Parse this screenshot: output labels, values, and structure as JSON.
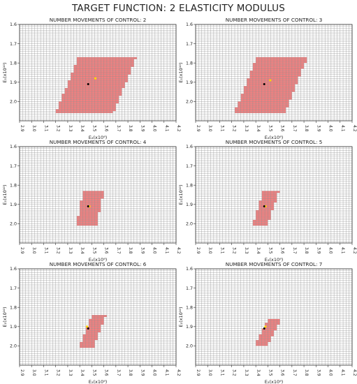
{
  "figure_title": "TARGET FUNCTION: 2 ELASTICITY MODULUS",
  "axes_labels": {
    "xlabel": "E₂(x10⁹)",
    "ylabel": "E₁(x10¹⁰)"
  },
  "colors": {
    "region": "#f08080",
    "grid": "#8c8c8c",
    "true_point": "#000000",
    "estimate_point": "#ffd700"
  },
  "chart_data": [
    {
      "type": "heatmap",
      "title": "NUMBER MOVEMENTS OF CONTROL: 2",
      "xlim": [
        2.9,
        4.2
      ],
      "ylim": [
        2.1,
        1.6
      ],
      "y_inverted": true,
      "xticks": [
        "2.9",
        "3.0",
        "3.1",
        "3.2",
        "3.3",
        "3.4",
        "3.5",
        "3.6",
        "3.7",
        "3.8",
        "3.9",
        "4.0",
        "4.1",
        "4.2"
      ],
      "yticks": [
        "1.6",
        "1.7",
        "1.8",
        "1.9",
        "2.0"
      ],
      "region": {
        "x_min": 3.2,
        "x_max": 3.87,
        "y_top": 1.77,
        "y_bottom": 2.06,
        "width_x": 0.48
      },
      "true_point": {
        "x": 3.47,
        "y": 1.91
      },
      "estimate_point": {
        "x": 3.53,
        "y": 1.88
      }
    },
    {
      "type": "heatmap",
      "title": "NUMBER MOVEMENTS OF CONTROL: 3",
      "xlim": [
        2.9,
        4.2
      ],
      "ylim": [
        2.1,
        1.6
      ],
      "y_inverted": true,
      "xticks": [
        "2.9",
        "3.0",
        "3.1",
        "3.2",
        "3.3",
        "3.4",
        "3.5",
        "3.6",
        "3.7",
        "3.8",
        "3.9",
        "4.0",
        "4.1",
        "4.2"
      ],
      "yticks": [
        "1.6",
        "1.7",
        "1.8",
        "1.9",
        "2.0"
      ],
      "region": {
        "x_min": 3.22,
        "x_max": 3.83,
        "y_top": 1.77,
        "y_bottom": 2.06,
        "width_x": 0.42
      },
      "true_point": {
        "x": 3.47,
        "y": 1.91
      },
      "estimate_point": {
        "x": 3.52,
        "y": 1.89
      }
    },
    {
      "type": "heatmap",
      "title": "NUMBER MOVEMENTS OF CONTROL: 4",
      "xlim": [
        2.9,
        4.2
      ],
      "ylim": [
        2.1,
        1.6
      ],
      "y_inverted": true,
      "xticks": [
        "2.9",
        "3.0",
        "3.1",
        "3.2",
        "3.3",
        "3.4",
        "3.5",
        "3.6",
        "3.7",
        "3.8",
        "3.9",
        "4.0",
        "4.1",
        "4.2"
      ],
      "yticks": [
        "1.6",
        "1.7",
        "1.8",
        "1.9",
        "2.0"
      ],
      "region": {
        "x_min": 3.37,
        "x_max": 3.6,
        "y_top": 1.83,
        "y_bottom": 2.01,
        "width_x": 0.17
      },
      "true_point": {
        "x": 3.47,
        "y": 1.91
      },
      "estimate_point": {
        "x": 3.48,
        "y": 1.91
      }
    },
    {
      "type": "heatmap",
      "title": "NUMBER MOVEMENTS OF CONTROL: 5",
      "xlim": [
        2.9,
        4.2
      ],
      "ylim": [
        2.1,
        1.6
      ],
      "y_inverted": true,
      "xticks": [
        "2.9",
        "3.0",
        "3.1",
        "3.2",
        "3.3",
        "3.4",
        "3.5",
        "3.6",
        "3.7",
        "3.8",
        "3.9",
        "4.0",
        "4.1",
        "4.2"
      ],
      "yticks": [
        "1.6",
        "1.7",
        "1.8",
        "1.9",
        "2.0"
      ],
      "region": {
        "x_min": 3.37,
        "x_max": 3.59,
        "y_top": 1.83,
        "y_bottom": 2.01,
        "width_x": 0.13
      },
      "true_point": {
        "x": 3.47,
        "y": 1.91
      },
      "estimate_point": {
        "x": 3.48,
        "y": 1.91
      }
    },
    {
      "type": "heatmap",
      "title": "NUMBER MOVEMENTS OF CONTROL: 6",
      "xlim": [
        2.9,
        4.2
      ],
      "ylim": [
        2.1,
        1.6
      ],
      "y_inverted": true,
      "xticks": [
        "2.9",
        "3.0",
        "3.1",
        "3.2",
        "3.3",
        "3.4",
        "3.5",
        "3.6",
        "3.7",
        "3.8",
        "3.9",
        "4.0",
        "4.1",
        "4.2"
      ],
      "yticks": [
        "1.6",
        "1.7",
        "1.8",
        "1.9",
        "2.0"
      ],
      "region": {
        "x_min": 3.39,
        "x_max": 3.62,
        "y_top": 1.84,
        "y_bottom": 2.01,
        "width_x": 0.12
      },
      "true_point": {
        "x": 3.47,
        "y": 1.91
      },
      "estimate_point": {
        "x": 3.46,
        "y": 1.9
      }
    },
    {
      "type": "heatmap",
      "title": "NUMBER MOVEMENTS OF CONTROL: 7",
      "xlim": [
        2.9,
        4.2
      ],
      "ylim": [
        2.1,
        1.6
      ],
      "y_inverted": true,
      "xticks": [
        "2.9",
        "3.0",
        "3.1",
        "3.2",
        "3.3",
        "3.4",
        "3.5",
        "3.6",
        "3.7",
        "3.8",
        "3.9",
        "4.0",
        "4.1",
        "4.2"
      ],
      "yticks": [
        "1.6",
        "1.7",
        "1.8",
        "1.9",
        "2.0"
      ],
      "region": {
        "x_min": 3.39,
        "x_max": 3.61,
        "y_top": 1.86,
        "y_bottom": 2.0,
        "width_x": 0.11
      },
      "true_point": {
        "x": 3.47,
        "y": 1.91
      },
      "estimate_point": {
        "x": 3.48,
        "y": 1.9
      }
    }
  ]
}
